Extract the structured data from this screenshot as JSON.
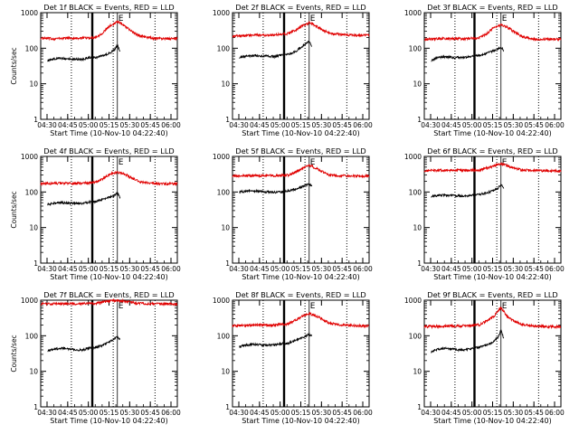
{
  "chart_data": [
    {
      "type": "line",
      "title": "Det 1f BLACK = Events, RED = LLD",
      "xlabel": "Start Time (10-Nov-10 04:22:40)",
      "ylabel": "Counts/sec",
      "x_ticks": [
        "04:30",
        "04:45",
        "05:00",
        "05:15",
        "05:30",
        "05:45",
        "06:00"
      ],
      "y_ticks": [
        "1",
        "10",
        "100",
        "1000"
      ],
      "y_scale": "log",
      "ylim": [
        1,
        1000
      ],
      "xlim_minutes": [
        0,
        98
      ],
      "grid": false,
      "dotted_vlines_minutes": [
        22,
        52,
        82
      ],
      "thick_vline_minutes": 37,
      "marker_minutes": 55,
      "marker_label": "E",
      "series": [
        {
          "color": "#e00000",
          "x_minutes": [
            0,
            10,
            20,
            30,
            40,
            45,
            50,
            55,
            58,
            60,
            65,
            70,
            80,
            90,
            98
          ],
          "values": [
            190,
            185,
            195,
            190,
            205,
            280,
            430,
            560,
            490,
            430,
            300,
            230,
            190,
            185,
            185
          ]
        },
        {
          "color": "#000000",
          "x_minutes": [
            5,
            10,
            15,
            20,
            25,
            30,
            35,
            40,
            45,
            50,
            53,
            55,
            57
          ],
          "values": [
            45,
            50,
            52,
            50,
            50,
            48,
            55,
            55,
            62,
            75,
            90,
            120,
            80
          ]
        }
      ]
    },
    {
      "type": "line",
      "title": "Det 2f BLACK = Events, RED = LLD",
      "xlabel": "Start Time (10-Nov-10 04:22:40)",
      "ylabel": "",
      "x_ticks": [
        "04:30",
        "04:45",
        "05:00",
        "05:15",
        "05:30",
        "05:45",
        "06:00"
      ],
      "y_ticks": [
        "1",
        "10",
        "100",
        "1000"
      ],
      "y_scale": "log",
      "ylim": [
        1,
        1000
      ],
      "xlim_minutes": [
        0,
        98
      ],
      "grid": false,
      "dotted_vlines_minutes": [
        22,
        52,
        82
      ],
      "thick_vline_minutes": 37,
      "marker_minutes": 55,
      "marker_label": "E",
      "series": [
        {
          "color": "#e00000",
          "x_minutes": [
            0,
            10,
            20,
            30,
            40,
            45,
            50,
            55,
            58,
            60,
            65,
            70,
            80,
            90,
            98
          ],
          "values": [
            220,
            230,
            235,
            240,
            260,
            320,
            420,
            520,
            470,
            420,
            320,
            260,
            240,
            230,
            230
          ]
        },
        {
          "color": "#000000",
          "x_minutes": [
            5,
            10,
            15,
            20,
            25,
            30,
            35,
            40,
            45,
            50,
            53,
            55,
            57
          ],
          "values": [
            55,
            60,
            62,
            60,
            60,
            58,
            65,
            68,
            80,
            110,
            140,
            160,
            110
          ]
        }
      ]
    },
    {
      "type": "line",
      "title": "Det 3f BLACK = Events, RED = LLD",
      "xlabel": "Start Time (10-Nov-10 04:22:40)",
      "ylabel": "",
      "x_ticks": [
        "04:30",
        "04:45",
        "05:00",
        "05:15",
        "05:30",
        "05:45",
        "06:00"
      ],
      "y_ticks": [
        "1",
        "10",
        "100",
        "1000"
      ],
      "y_scale": "log",
      "ylim": [
        1,
        1000
      ],
      "xlim_minutes": [
        0,
        98
      ],
      "grid": false,
      "dotted_vlines_minutes": [
        22,
        52,
        82
      ],
      "thick_vline_minutes": 36,
      "marker_minutes": 55,
      "marker_label": "E",
      "series": [
        {
          "color": "#e00000",
          "x_minutes": [
            0,
            10,
            20,
            30,
            40,
            45,
            50,
            55,
            58,
            60,
            65,
            70,
            80,
            90,
            98
          ],
          "values": [
            180,
            185,
            185,
            185,
            200,
            260,
            380,
            450,
            410,
            380,
            280,
            210,
            180,
            180,
            180
          ]
        },
        {
          "color": "#000000",
          "x_minutes": [
            5,
            10,
            15,
            20,
            25,
            30,
            35,
            40,
            45,
            50,
            53,
            55,
            57
          ],
          "values": [
            45,
            55,
            58,
            55,
            55,
            55,
            60,
            62,
            72,
            85,
            95,
            110,
            85
          ]
        }
      ]
    },
    {
      "type": "line",
      "title": "Det 4f BLACK = Events, RED = LLD",
      "xlabel": "Start Time (10-Nov-10 04:22:40)",
      "ylabel": "Counts/sec",
      "x_ticks": [
        "04:30",
        "04:45",
        "05:00",
        "05:15",
        "05:30",
        "05:45",
        "06:00"
      ],
      "y_ticks": [
        "1",
        "10",
        "100",
        "1000"
      ],
      "y_scale": "log",
      "ylim": [
        1,
        1000
      ],
      "xlim_minutes": [
        0,
        98
      ],
      "grid": false,
      "dotted_vlines_minutes": [
        22,
        52,
        82
      ],
      "thick_vline_minutes": 37,
      "marker_minutes": 55,
      "marker_label": "E",
      "series": [
        {
          "color": "#e00000",
          "x_minutes": [
            0,
            10,
            20,
            30,
            40,
            45,
            50,
            55,
            58,
            60,
            65,
            70,
            80,
            90,
            98
          ],
          "values": [
            170,
            175,
            175,
            175,
            190,
            240,
            320,
            360,
            340,
            320,
            250,
            200,
            175,
            170,
            170
          ]
        },
        {
          "color": "#000000",
          "x_minutes": [
            5,
            10,
            15,
            20,
            25,
            30,
            35,
            40,
            45,
            50,
            53,
            55,
            57
          ],
          "values": [
            45,
            48,
            50,
            48,
            48,
            48,
            52,
            55,
            62,
            72,
            80,
            95,
            70
          ]
        }
      ]
    },
    {
      "type": "line",
      "title": "Det 5f BLACK = Events, RED = LLD",
      "xlabel": "Start Time (10-Nov-10 04:22:40)",
      "ylabel": "",
      "x_ticks": [
        "04:30",
        "04:45",
        "05:00",
        "05:15",
        "05:30",
        "05:45",
        "06:00"
      ],
      "y_ticks": [
        "1",
        "10",
        "100",
        "1000"
      ],
      "y_scale": "log",
      "ylim": [
        1,
        1000
      ],
      "xlim_minutes": [
        0,
        98
      ],
      "grid": false,
      "dotted_vlines_minutes": [
        22,
        52,
        82
      ],
      "thick_vline_minutes": 37,
      "marker_minutes": 55,
      "marker_label": "E",
      "series": [
        {
          "color": "#e00000",
          "x_minutes": [
            0,
            10,
            20,
            30,
            40,
            45,
            50,
            55,
            58,
            60,
            65,
            70,
            80,
            90,
            98
          ],
          "values": [
            280,
            285,
            290,
            290,
            300,
            360,
            460,
            560,
            510,
            460,
            360,
            300,
            285,
            280,
            280
          ]
        },
        {
          "color": "#000000",
          "x_minutes": [
            5,
            10,
            15,
            20,
            25,
            30,
            35,
            40,
            45,
            50,
            53,
            55,
            57
          ],
          "values": [
            100,
            105,
            108,
            102,
            100,
            98,
            100,
            108,
            120,
            140,
            155,
            165,
            140
          ]
        }
      ]
    },
    {
      "type": "line",
      "title": "Det 6f BLACK = Events, RED = LLD",
      "xlabel": "Start Time (10-Nov-10 04:22:40)",
      "ylabel": "",
      "x_ticks": [
        "04:30",
        "04:45",
        "05:00",
        "05:15",
        "05:30",
        "05:45",
        "06:00"
      ],
      "y_ticks": [
        "1",
        "10",
        "100",
        "1000"
      ],
      "y_scale": "log",
      "ylim": [
        1,
        1000
      ],
      "xlim_minutes": [
        0,
        98
      ],
      "grid": false,
      "dotted_vlines_minutes": [
        22,
        52,
        82
      ],
      "thick_vline_minutes": 36,
      "marker_minutes": 55,
      "marker_label": "E",
      "series": [
        {
          "color": "#e00000",
          "x_minutes": [
            0,
            10,
            20,
            30,
            40,
            45,
            50,
            55,
            58,
            60,
            65,
            70,
            80,
            90,
            98
          ],
          "values": [
            400,
            405,
            410,
            405,
            420,
            470,
            540,
            620,
            580,
            540,
            460,
            420,
            400,
            395,
            390
          ]
        },
        {
          "color": "#000000",
          "x_minutes": [
            5,
            10,
            15,
            20,
            25,
            30,
            35,
            40,
            45,
            50,
            53,
            55,
            57
          ],
          "values": [
            75,
            80,
            82,
            80,
            78,
            78,
            82,
            85,
            95,
            110,
            130,
            165,
            120
          ]
        }
      ]
    },
    {
      "type": "line",
      "title": "Det 7f BLACK = Events, RED = LLD",
      "xlabel": "Start Time (10-Nov-10 04:22:40)",
      "ylabel": "Counts/sec",
      "x_ticks": [
        "04:30",
        "04:45",
        "05:00",
        "05:15",
        "05:30",
        "05:45",
        "06:00"
      ],
      "y_ticks": [
        "1",
        "10",
        "100",
        "1000"
      ],
      "y_scale": "log",
      "ylim": [
        1,
        1000
      ],
      "xlim_minutes": [
        0,
        98
      ],
      "grid": false,
      "dotted_vlines_minutes": [
        22,
        52,
        82
      ],
      "thick_vline_minutes": 37,
      "marker_minutes": 55,
      "marker_label": "E",
      "series": [
        {
          "color": "#e00000",
          "x_minutes": [
            0,
            10,
            20,
            30,
            40,
            45,
            50,
            55,
            58,
            60,
            65,
            70,
            80,
            90,
            98
          ],
          "values": [
            780,
            790,
            800,
            800,
            820,
            880,
            950,
            980,
            960,
            940,
            880,
            820,
            790,
            780,
            770
          ]
        },
        {
          "color": "#000000",
          "x_minutes": [
            5,
            10,
            15,
            20,
            25,
            30,
            35,
            40,
            45,
            50,
            53,
            55,
            57
          ],
          "values": [
            38,
            42,
            45,
            42,
            40,
            40,
            45,
            48,
            55,
            70,
            85,
            95,
            75
          ]
        }
      ]
    },
    {
      "type": "line",
      "title": "Det 8f BLACK = Events, RED = LLD",
      "xlabel": "Start Time (10-Nov-10 04:22:40)",
      "ylabel": "",
      "x_ticks": [
        "04:30",
        "04:45",
        "05:00",
        "05:15",
        "05:30",
        "05:45",
        "06:00"
      ],
      "y_ticks": [
        "1",
        "10",
        "100",
        "1000"
      ],
      "y_scale": "log",
      "ylim": [
        1,
        1000
      ],
      "xlim_minutes": [
        0,
        98
      ],
      "grid": false,
      "dotted_vlines_minutes": [
        22,
        52,
        82
      ],
      "thick_vline_minutes": 37,
      "marker_minutes": 55,
      "marker_label": "E",
      "series": [
        {
          "color": "#e00000",
          "x_minutes": [
            0,
            10,
            20,
            30,
            40,
            45,
            50,
            55,
            58,
            60,
            65,
            70,
            80,
            90,
            98
          ],
          "values": [
            190,
            195,
            200,
            200,
            215,
            270,
            360,
            420,
            390,
            360,
            280,
            220,
            200,
            190,
            190
          ]
        },
        {
          "color": "#000000",
          "x_minutes": [
            5,
            10,
            15,
            20,
            25,
            30,
            35,
            40,
            45,
            50,
            53,
            55,
            57
          ],
          "values": [
            50,
            55,
            58,
            55,
            55,
            55,
            60,
            62,
            72,
            90,
            100,
            110,
            95
          ]
        }
      ]
    },
    {
      "type": "line",
      "title": "Det 9f BLACK = Events, RED = LLD",
      "xlabel": "Start Time (10-Nov-10 04:22:40)",
      "ylabel": "",
      "x_ticks": [
        "04:30",
        "04:45",
        "05:00",
        "05:15",
        "05:30",
        "05:45",
        "06:00"
      ],
      "y_ticks": [
        "1",
        "10",
        "100",
        "1000"
      ],
      "y_scale": "log",
      "ylim": [
        1,
        1000
      ],
      "xlim_minutes": [
        0,
        98
      ],
      "grid": false,
      "dotted_vlines_minutes": [
        22,
        52,
        82
      ],
      "thick_vline_minutes": 36,
      "marker_minutes": 55,
      "marker_label": "E",
      "series": [
        {
          "color": "#e00000",
          "x_minutes": [
            0,
            10,
            20,
            30,
            40,
            45,
            50,
            55,
            58,
            60,
            65,
            70,
            80,
            90,
            98
          ],
          "values": [
            180,
            185,
            190,
            190,
            205,
            260,
            350,
            600,
            420,
            330,
            250,
            210,
            185,
            180,
            180
          ]
        },
        {
          "color": "#000000",
          "x_minutes": [
            5,
            10,
            15,
            20,
            25,
            30,
            35,
            40,
            45,
            50,
            53,
            55,
            57
          ],
          "values": [
            35,
            42,
            45,
            42,
            40,
            40,
            45,
            48,
            55,
            70,
            90,
            140,
            80
          ]
        }
      ]
    }
  ]
}
